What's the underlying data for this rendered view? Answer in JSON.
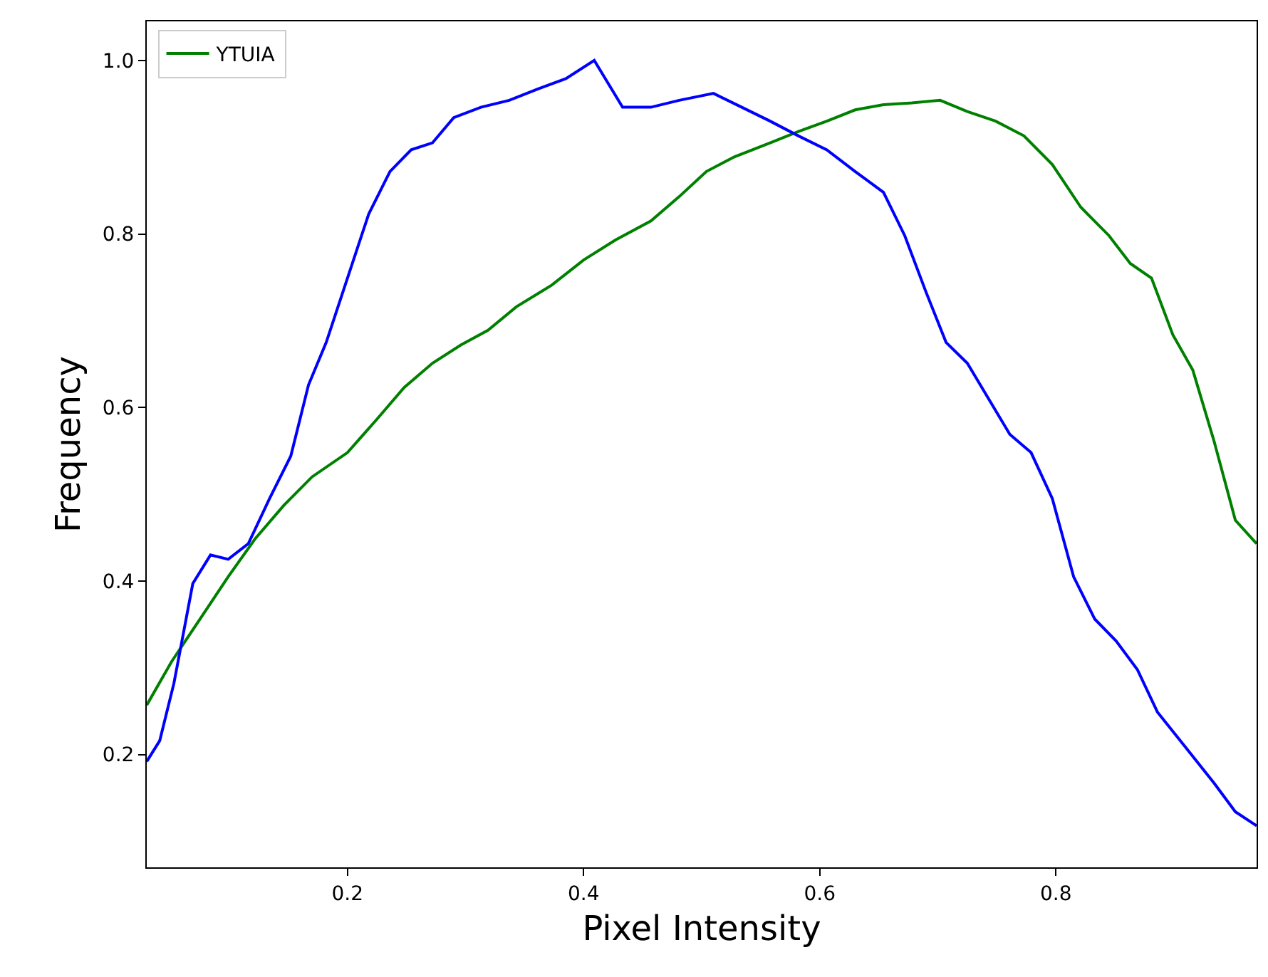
{
  "chart_data": {
    "type": "line",
    "xlabel": "Pixel Intensity",
    "ylabel": "Frequency",
    "xlim": [
      0.03,
      0.97
    ],
    "ylim": [
      0.07,
      1.045
    ],
    "xticks": [
      0.2,
      0.4,
      0.6,
      0.8
    ],
    "yticks": [
      0.2,
      0.4,
      0.6,
      0.8,
      {
        "value": 1.0,
        "label": "1.0"
      }
    ],
    "grid": false,
    "legend": "top left",
    "series": [
      {
        "name": "YTUIA",
        "color": "#008000",
        "x": [
          0.03,
          0.051,
          0.075,
          0.099,
          0.122,
          0.146,
          0.17,
          0.2,
          0.224,
          0.248,
          0.272,
          0.296,
          0.319,
          0.343,
          0.373,
          0.4,
          0.427,
          0.457,
          0.481,
          0.504,
          0.528,
          0.558,
          0.582,
          0.606,
          0.63,
          0.654,
          0.678,
          0.702,
          0.725,
          0.749,
          0.773,
          0.797,
          0.821,
          0.845,
          0.863,
          0.881,
          0.899,
          0.916,
          0.934,
          0.952,
          0.97
        ],
        "values": [
          0.257,
          0.307,
          0.356,
          0.405,
          0.449,
          0.487,
          0.52,
          0.548,
          0.585,
          0.623,
          0.651,
          0.672,
          0.689,
          0.716,
          0.741,
          0.77,
          0.793,
          0.815,
          0.843,
          0.872,
          0.889,
          0.905,
          0.918,
          0.93,
          0.943,
          0.949,
          0.951,
          0.954,
          0.941,
          0.93,
          0.913,
          0.88,
          0.831,
          0.798,
          0.766,
          0.749,
          0.684,
          0.643,
          0.561,
          0.47,
          0.443
        ]
      },
      {
        "color": "#0000ff",
        "x": [
          0.03,
          0.041,
          0.053,
          0.069,
          0.084,
          0.099,
          0.116,
          0.134,
          0.152,
          0.167,
          0.182,
          0.2,
          0.218,
          0.236,
          0.254,
          0.272,
          0.29,
          0.313,
          0.337,
          0.361,
          0.385,
          0.409,
          0.433,
          0.457,
          0.481,
          0.51,
          0.534,
          0.558,
          0.582,
          0.606,
          0.63,
          0.654,
          0.672,
          0.69,
          0.707,
          0.725,
          0.743,
          0.761,
          0.779,
          0.797,
          0.815,
          0.833,
          0.851,
          0.869,
          0.886,
          0.91,
          0.934,
          0.952,
          0.97
        ],
        "values": [
          0.192,
          0.216,
          0.282,
          0.397,
          0.43,
          0.425,
          0.443,
          0.495,
          0.544,
          0.626,
          0.675,
          0.749,
          0.823,
          0.872,
          0.897,
          0.905,
          0.934,
          0.946,
          0.954,
          0.967,
          0.979,
          1.0,
          0.946,
          0.946,
          0.954,
          0.962,
          0.946,
          0.93,
          0.913,
          0.897,
          0.872,
          0.848,
          0.798,
          0.733,
          0.675,
          0.651,
          0.61,
          0.569,
          0.548,
          0.495,
          0.405,
          0.356,
          0.331,
          0.298,
          0.249,
          0.208,
          0.167,
          0.134,
          0.118
        ]
      }
    ]
  }
}
